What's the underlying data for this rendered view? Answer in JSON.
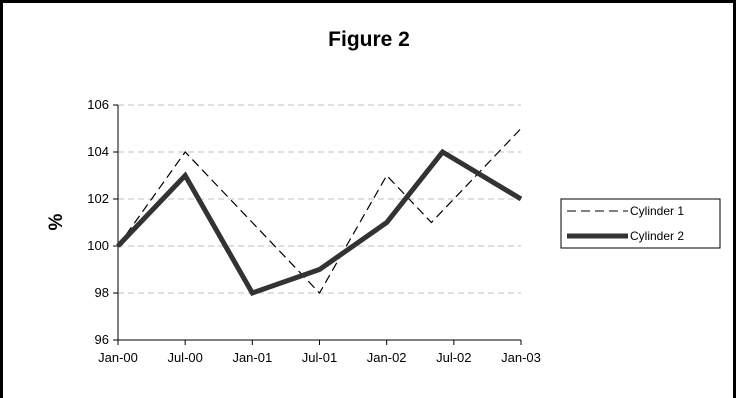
{
  "chart_data": {
    "type": "line",
    "title": "Figure 2",
    "xlabel": "",
    "ylabel": "%",
    "categories": [
      "Jan-00",
      "Jul-00",
      "Jan-01",
      "Jul-01",
      "Jan-02",
      "Jul-02",
      "Jan-03"
    ],
    "ylim": [
      96,
      106
    ],
    "yticks": [
      96,
      98,
      100,
      102,
      104,
      106
    ],
    "grid": true,
    "legend_position": "right",
    "series": [
      {
        "name": "Cylinder 1",
        "style": "dashed",
        "color": "#000000",
        "points": [
          {
            "x": "Jan-00",
            "y": 100
          },
          {
            "x": "Jul-00",
            "y": 104
          },
          {
            "x": "Jan-01",
            "y": 101
          },
          {
            "x": "Jul-01",
            "y": 98
          },
          {
            "x": "Jan-02",
            "y": 103
          },
          {
            "x": "May-02",
            "y": 101
          },
          {
            "x": "Jan-03",
            "y": 105
          }
        ]
      },
      {
        "name": "Cylinder 2",
        "style": "solid-thick",
        "color": "#333333",
        "points": [
          {
            "x": "Jan-00",
            "y": 100
          },
          {
            "x": "Jul-00",
            "y": 103
          },
          {
            "x": "Jan-01",
            "y": 98
          },
          {
            "x": "Jul-01",
            "y": 99
          },
          {
            "x": "Jan-02",
            "y": 101
          },
          {
            "x": "Jun-02",
            "y": 104
          },
          {
            "x": "Jan-03",
            "y": 102
          }
        ]
      }
    ]
  }
}
